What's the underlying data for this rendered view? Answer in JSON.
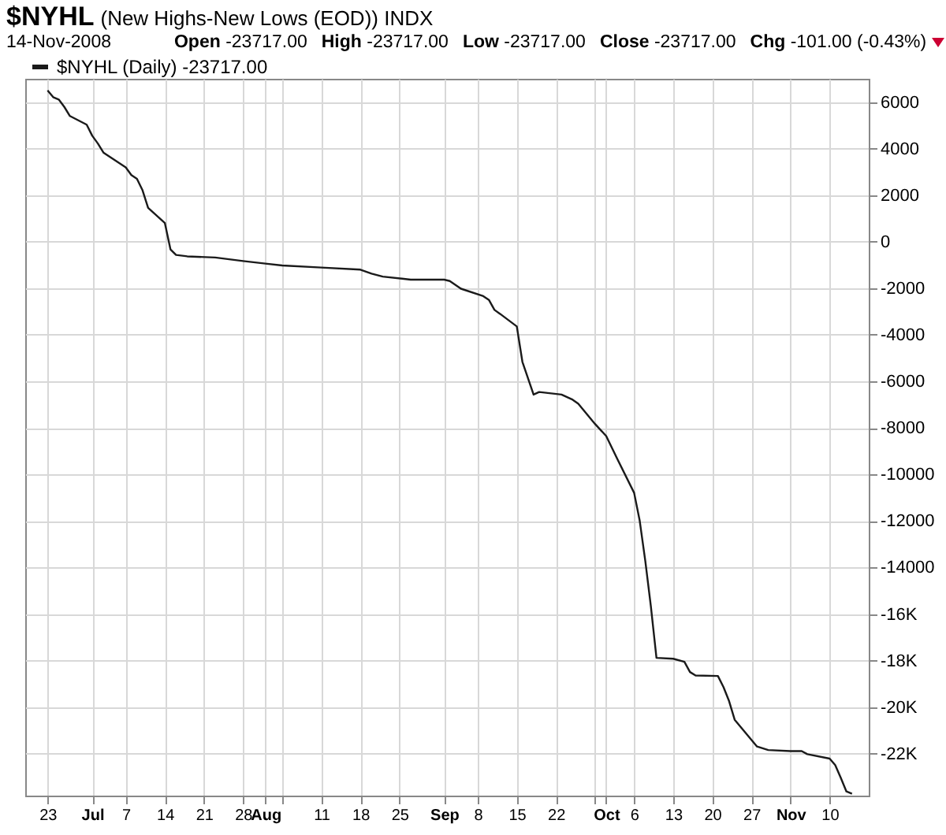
{
  "chart_data": {
    "type": "line",
    "title": "$NYHL",
    "subtitle": "(New Highs-New Lows (EOD)) INDX",
    "annotations": [
      "14-Nov-2008",
      "Open -23717.00",
      "High -23717.00",
      "Low -23717.00",
      "Close -23717.00",
      "Chg -101.00 (-0.43%)"
    ],
    "x": [
      "2008-06-23",
      "2008-06-24",
      "2008-06-25",
      "2008-06-26",
      "2008-06-27",
      "2008-06-30",
      "2008-07-01",
      "2008-07-02",
      "2008-07-03",
      "2008-07-07",
      "2008-07-08",
      "2008-07-09",
      "2008-07-10",
      "2008-07-11",
      "2008-07-14",
      "2008-07-15",
      "2008-07-16",
      "2008-07-18",
      "2008-07-23",
      "2008-07-28",
      "2008-08-01",
      "2008-08-04",
      "2008-08-11",
      "2008-08-18",
      "2008-08-20",
      "2008-08-22",
      "2008-08-27",
      "2008-09-02",
      "2008-09-03",
      "2008-09-05",
      "2008-09-09",
      "2008-09-10",
      "2008-09-11",
      "2008-09-12",
      "2008-09-15",
      "2008-09-16",
      "2008-09-18",
      "2008-09-19",
      "2008-09-23",
      "2008-09-25",
      "2008-09-26",
      "2008-09-29",
      "2008-09-30",
      "2008-10-01",
      "2008-10-03",
      "2008-10-06",
      "2008-10-07",
      "2008-10-08",
      "2008-10-09",
      "2008-10-10",
      "2008-10-13",
      "2008-10-15",
      "2008-10-16",
      "2008-10-17",
      "2008-10-21",
      "2008-10-22",
      "2008-10-23",
      "2008-10-24",
      "2008-10-28",
      "2008-10-30",
      "2008-11-03",
      "2008-11-05",
      "2008-11-06",
      "2008-11-10",
      "2008-11-11",
      "2008-11-12",
      "2008-11-13",
      "2008-11-14"
    ],
    "series": [
      {
        "name": "$NYHL (Daily) -23717.00",
        "color": "#1a1a1a",
        "values": [
          6500,
          6210,
          6110,
          5790,
          5400,
          5030,
          4550,
          4220,
          3830,
          3190,
          2860,
          2700,
          2210,
          1450,
          800,
          -330,
          -570,
          -630,
          -680,
          -830,
          -940,
          -1020,
          -1110,
          -1200,
          -1370,
          -1500,
          -1630,
          -1630,
          -1690,
          -2020,
          -2340,
          -2500,
          -2930,
          -3100,
          -3640,
          -5160,
          -6570,
          -6460,
          -6570,
          -6790,
          -6960,
          -7830,
          -8090,
          -8350,
          -9340,
          -10790,
          -11990,
          -13720,
          -15670,
          -17880,
          -17920,
          -18050,
          -18490,
          -18640,
          -18660,
          -19140,
          -19740,
          -20540,
          -21690,
          -21840,
          -21890,
          -21890,
          -22020,
          -22210,
          -22490,
          -23040,
          -23620,
          -23717
        ]
      }
    ],
    "xlim": [
      "2008-06-19",
      "2008-11-17"
    ],
    "xticks": [
      {
        "value": "2008-06-23",
        "label": "23"
      },
      {
        "value": "2008-07-01",
        "label": "Jul"
      },
      {
        "value": "2008-07-07",
        "label": "7"
      },
      {
        "value": "2008-07-14",
        "label": "14"
      },
      {
        "value": "2008-07-21",
        "label": "21"
      },
      {
        "value": "2008-07-28",
        "label": "28"
      },
      {
        "value": "2008-08-01",
        "label": "Aug"
      },
      {
        "value": "2008-08-04",
        "label": null
      },
      {
        "value": "2008-08-11",
        "label": "11"
      },
      {
        "value": "2008-08-18",
        "label": "18"
      },
      {
        "value": "2008-08-25",
        "label": "25"
      },
      {
        "value": "2008-09-02",
        "label": "Sep"
      },
      {
        "value": "2008-09-08",
        "label": "8"
      },
      {
        "value": "2008-09-15",
        "label": "15"
      },
      {
        "value": "2008-09-22",
        "label": "22"
      },
      {
        "value": "2008-09-29",
        "label": null
      },
      {
        "value": "2008-10-01",
        "label": "Oct"
      },
      {
        "value": "2008-10-06",
        "label": "6"
      },
      {
        "value": "2008-10-13",
        "label": "13"
      },
      {
        "value": "2008-10-20",
        "label": "20"
      },
      {
        "value": "2008-10-27",
        "label": "27"
      },
      {
        "value": "2008-11-03",
        "label": "Nov"
      },
      {
        "value": "2008-11-10",
        "label": "10"
      }
    ],
    "ylim": [
      -23800,
      7000
    ],
    "yticks": [
      6000,
      4000,
      2000,
      0,
      -2000,
      -4000,
      -6000,
      -8000,
      -10000,
      -12000,
      -14000,
      {
        "value": -16000,
        "label": "-16K"
      },
      {
        "value": -18000,
        "label": "-18K"
      },
      {
        "value": -20000,
        "label": "-20K"
      },
      {
        "value": -22000,
        "label": "-22K"
      }
    ],
    "grid": true,
    "legend": "top left",
    "marker": "none",
    "line_style": "solid"
  }
}
